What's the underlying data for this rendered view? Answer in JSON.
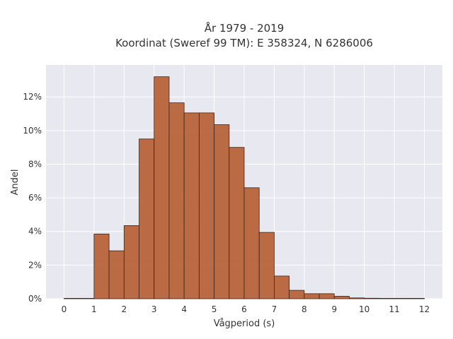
{
  "chart_data": {
    "type": "bar",
    "title_line1": "År 1979 - 2019",
    "title_line2": "Koordinat (Sweref 99 TM): E 358324, N 6286006",
    "xlabel": "Vågperiod (s)",
    "ylabel": "Andel",
    "bin_width": 0.5,
    "bin_starts": [
      0,
      0.5,
      1,
      1.5,
      2,
      2.5,
      3,
      3.5,
      4,
      4.5,
      5,
      5.5,
      6,
      6.5,
      7,
      7.5,
      8,
      8.5,
      9,
      9.5,
      10,
      10.5,
      11,
      11.5
    ],
    "values": [
      0.0,
      0.0,
      3.85,
      2.85,
      4.35,
      9.5,
      13.2,
      11.65,
      11.05,
      11.05,
      10.35,
      9.0,
      6.6,
      3.95,
      1.35,
      0.5,
      0.3,
      0.3,
      0.15,
      0.05,
      0.03,
      0.0,
      0.0,
      0.0
    ],
    "xlim": [
      -0.6,
      12.6
    ],
    "ylim": [
      0,
      13.9
    ],
    "x_ticks": [
      0,
      1,
      2,
      3,
      4,
      5,
      6,
      7,
      8,
      9,
      10,
      11,
      12
    ],
    "x_tick_labels": [
      "0",
      "1",
      "2",
      "3",
      "4",
      "5",
      "6",
      "7",
      "8",
      "9",
      "10",
      "11",
      "12"
    ],
    "y_ticks": [
      0,
      2,
      4,
      6,
      8,
      10,
      12
    ],
    "y_tick_labels": [
      "0%",
      "2%",
      "4%",
      "6%",
      "8%",
      "10%",
      "12%"
    ],
    "grid": true,
    "colors": {
      "bar_fill": "#b8643a",
      "bar_stroke": "#3d2418",
      "plot_bg": "#e8e8f0",
      "grid": "#ffffff"
    }
  }
}
